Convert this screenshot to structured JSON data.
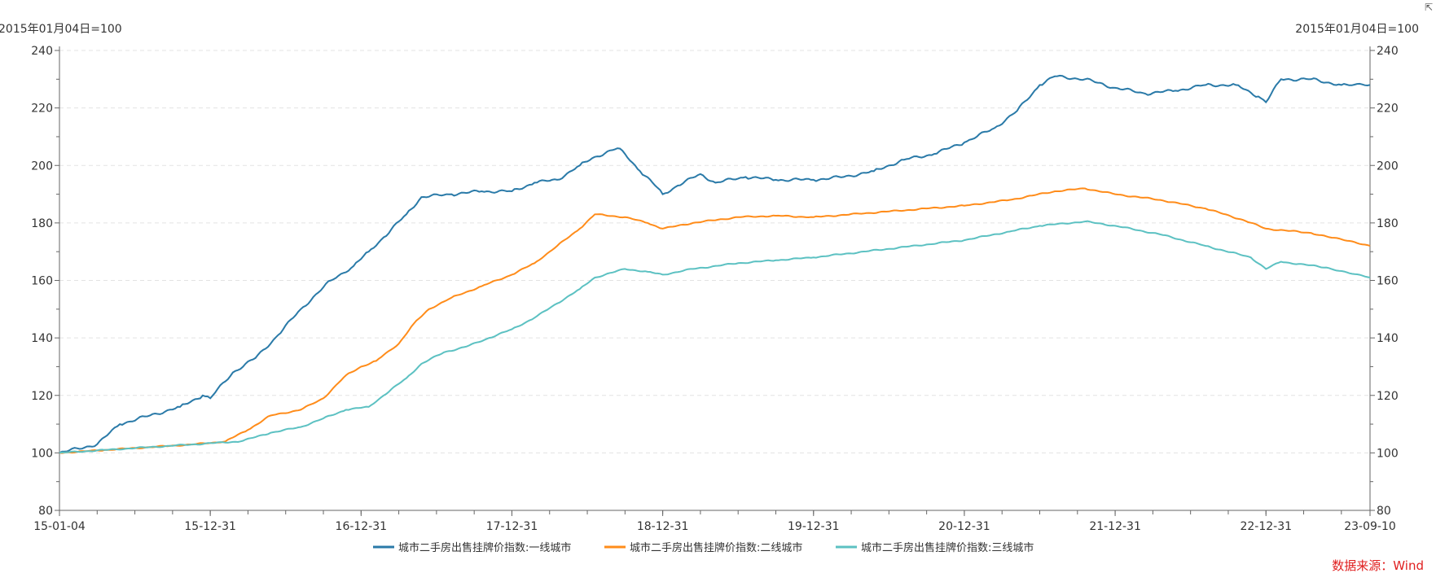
{
  "chart_data": {
    "type": "line",
    "title": "",
    "ylabel_left": "2015年01月04日=100",
    "ylabel_right": "2015年01月04日=100",
    "ylim": [
      80,
      240
    ],
    "yticks": [
      80,
      100,
      120,
      140,
      160,
      180,
      200,
      220,
      240
    ],
    "xlim": [
      2015.0,
      2023.69
    ],
    "xticks": [
      {
        "x": 2015.0,
        "label": "15-01-04"
      },
      {
        "x": 2016.0,
        "label": "15-12-31"
      },
      {
        "x": 2017.0,
        "label": "16-12-31"
      },
      {
        "x": 2018.0,
        "label": "17-12-31"
      },
      {
        "x": 2019.0,
        "label": "18-12-31"
      },
      {
        "x": 2020.0,
        "label": "19-12-31"
      },
      {
        "x": 2021.0,
        "label": "20-12-31"
      },
      {
        "x": 2022.0,
        "label": "21-12-31"
      },
      {
        "x": 2023.0,
        "label": "22-12-31"
      },
      {
        "x": 2023.69,
        "label": "23-09-10"
      }
    ],
    "grid": true,
    "legend_position": "bottom-center",
    "series": [
      {
        "name": "城市二手房出售挂牌价指数:一线城市",
        "color": "#2a7aa8",
        "points": [
          [
            2015.0,
            100
          ],
          [
            2015.25,
            103
          ],
          [
            2015.4,
            110
          ],
          [
            2015.6,
            113
          ],
          [
            2015.8,
            116
          ],
          [
            2015.95,
            120
          ],
          [
            2016.0,
            119
          ],
          [
            2016.15,
            128
          ],
          [
            2016.3,
            133
          ],
          [
            2016.45,
            141
          ],
          [
            2016.6,
            150
          ],
          [
            2016.8,
            160
          ],
          [
            2016.95,
            165
          ],
          [
            2017.05,
            170
          ],
          [
            2017.15,
            175
          ],
          [
            2017.3,
            183
          ],
          [
            2017.4,
            189
          ],
          [
            2017.6,
            190
          ],
          [
            2017.8,
            191
          ],
          [
            2018.0,
            191
          ],
          [
            2018.15,
            194
          ],
          [
            2018.3,
            195
          ],
          [
            2018.45,
            200
          ],
          [
            2018.55,
            203
          ],
          [
            2018.7,
            206
          ],
          [
            2018.75,
            204
          ],
          [
            2018.85,
            198
          ],
          [
            2018.95,
            193
          ],
          [
            2019.0,
            190
          ],
          [
            2019.1,
            193
          ],
          [
            2019.25,
            197
          ],
          [
            2019.35,
            194
          ],
          [
            2019.55,
            196
          ],
          [
            2019.75,
            195
          ],
          [
            2020.0,
            195
          ],
          [
            2020.2,
            196
          ],
          [
            2020.4,
            198
          ],
          [
            2020.6,
            202
          ],
          [
            2020.8,
            204
          ],
          [
            2021.0,
            208
          ],
          [
            2021.2,
            213
          ],
          [
            2021.35,
            219
          ],
          [
            2021.5,
            228
          ],
          [
            2021.6,
            231
          ],
          [
            2021.8,
            230
          ],
          [
            2022.0,
            227
          ],
          [
            2022.2,
            225
          ],
          [
            2022.4,
            226
          ],
          [
            2022.6,
            228
          ],
          [
            2022.8,
            228
          ],
          [
            2022.95,
            224
          ],
          [
            2023.0,
            222
          ],
          [
            2023.1,
            230
          ],
          [
            2023.3,
            230
          ],
          [
            2023.5,
            228
          ],
          [
            2023.69,
            228
          ]
        ]
      },
      {
        "name": "城市二手房出售挂牌价指数:二线城市",
        "color": "#ff8c1a",
        "points": [
          [
            2015.0,
            100
          ],
          [
            2015.3,
            101
          ],
          [
            2015.6,
            102
          ],
          [
            2015.9,
            103
          ],
          [
            2016.1,
            104
          ],
          [
            2016.25,
            108
          ],
          [
            2016.4,
            113
          ],
          [
            2016.6,
            115
          ],
          [
            2016.75,
            119
          ],
          [
            2016.9,
            127
          ],
          [
            2017.0,
            130
          ],
          [
            2017.1,
            132
          ],
          [
            2017.25,
            138
          ],
          [
            2017.35,
            145
          ],
          [
            2017.45,
            150
          ],
          [
            2017.6,
            154
          ],
          [
            2017.8,
            158
          ],
          [
            2018.0,
            162
          ],
          [
            2018.15,
            166
          ],
          [
            2018.3,
            172
          ],
          [
            2018.45,
            178
          ],
          [
            2018.55,
            183
          ],
          [
            2018.75,
            182
          ],
          [
            2018.9,
            180
          ],
          [
            2019.0,
            178
          ],
          [
            2019.2,
            180
          ],
          [
            2019.5,
            182
          ],
          [
            2019.75,
            182.5
          ],
          [
            2020.0,
            182
          ],
          [
            2020.5,
            184
          ],
          [
            2021.0,
            186
          ],
          [
            2021.3,
            188
          ],
          [
            2021.6,
            191
          ],
          [
            2021.8,
            192
          ],
          [
            2022.0,
            190
          ],
          [
            2022.3,
            188
          ],
          [
            2022.6,
            185
          ],
          [
            2022.85,
            181
          ],
          [
            2023.0,
            178
          ],
          [
            2023.3,
            176.5
          ],
          [
            2023.69,
            172
          ]
        ]
      },
      {
        "name": "城市二手房出售挂牌价指数:三线城市",
        "color": "#5cc1c2",
        "points": [
          [
            2015.0,
            100
          ],
          [
            2015.3,
            101
          ],
          [
            2015.6,
            102
          ],
          [
            2015.9,
            103
          ],
          [
            2016.2,
            104
          ],
          [
            2016.4,
            107
          ],
          [
            2016.6,
            109
          ],
          [
            2016.75,
            112
          ],
          [
            2016.9,
            115
          ],
          [
            2017.05,
            116
          ],
          [
            2017.15,
            120
          ],
          [
            2017.3,
            126
          ],
          [
            2017.4,
            131
          ],
          [
            2017.55,
            135
          ],
          [
            2017.7,
            137
          ],
          [
            2017.85,
            140
          ],
          [
            2018.0,
            143
          ],
          [
            2018.15,
            147
          ],
          [
            2018.3,
            152
          ],
          [
            2018.45,
            157
          ],
          [
            2018.55,
            161
          ],
          [
            2018.75,
            164
          ],
          [
            2018.9,
            163
          ],
          [
            2019.0,
            162
          ],
          [
            2019.2,
            164
          ],
          [
            2019.5,
            166
          ],
          [
            2019.75,
            167
          ],
          [
            2020.0,
            168
          ],
          [
            2020.5,
            171
          ],
          [
            2021.0,
            174
          ],
          [
            2021.3,
            177
          ],
          [
            2021.5,
            179
          ],
          [
            2021.8,
            180.5
          ],
          [
            2022.0,
            179
          ],
          [
            2022.3,
            176
          ],
          [
            2022.6,
            172
          ],
          [
            2022.9,
            168
          ],
          [
            2023.0,
            164
          ],
          [
            2023.1,
            166.5
          ],
          [
            2023.4,
            164.5
          ],
          [
            2023.69,
            161
          ]
        ]
      }
    ]
  },
  "source": "数据来源：Wind",
  "export_icon": "export-icon"
}
